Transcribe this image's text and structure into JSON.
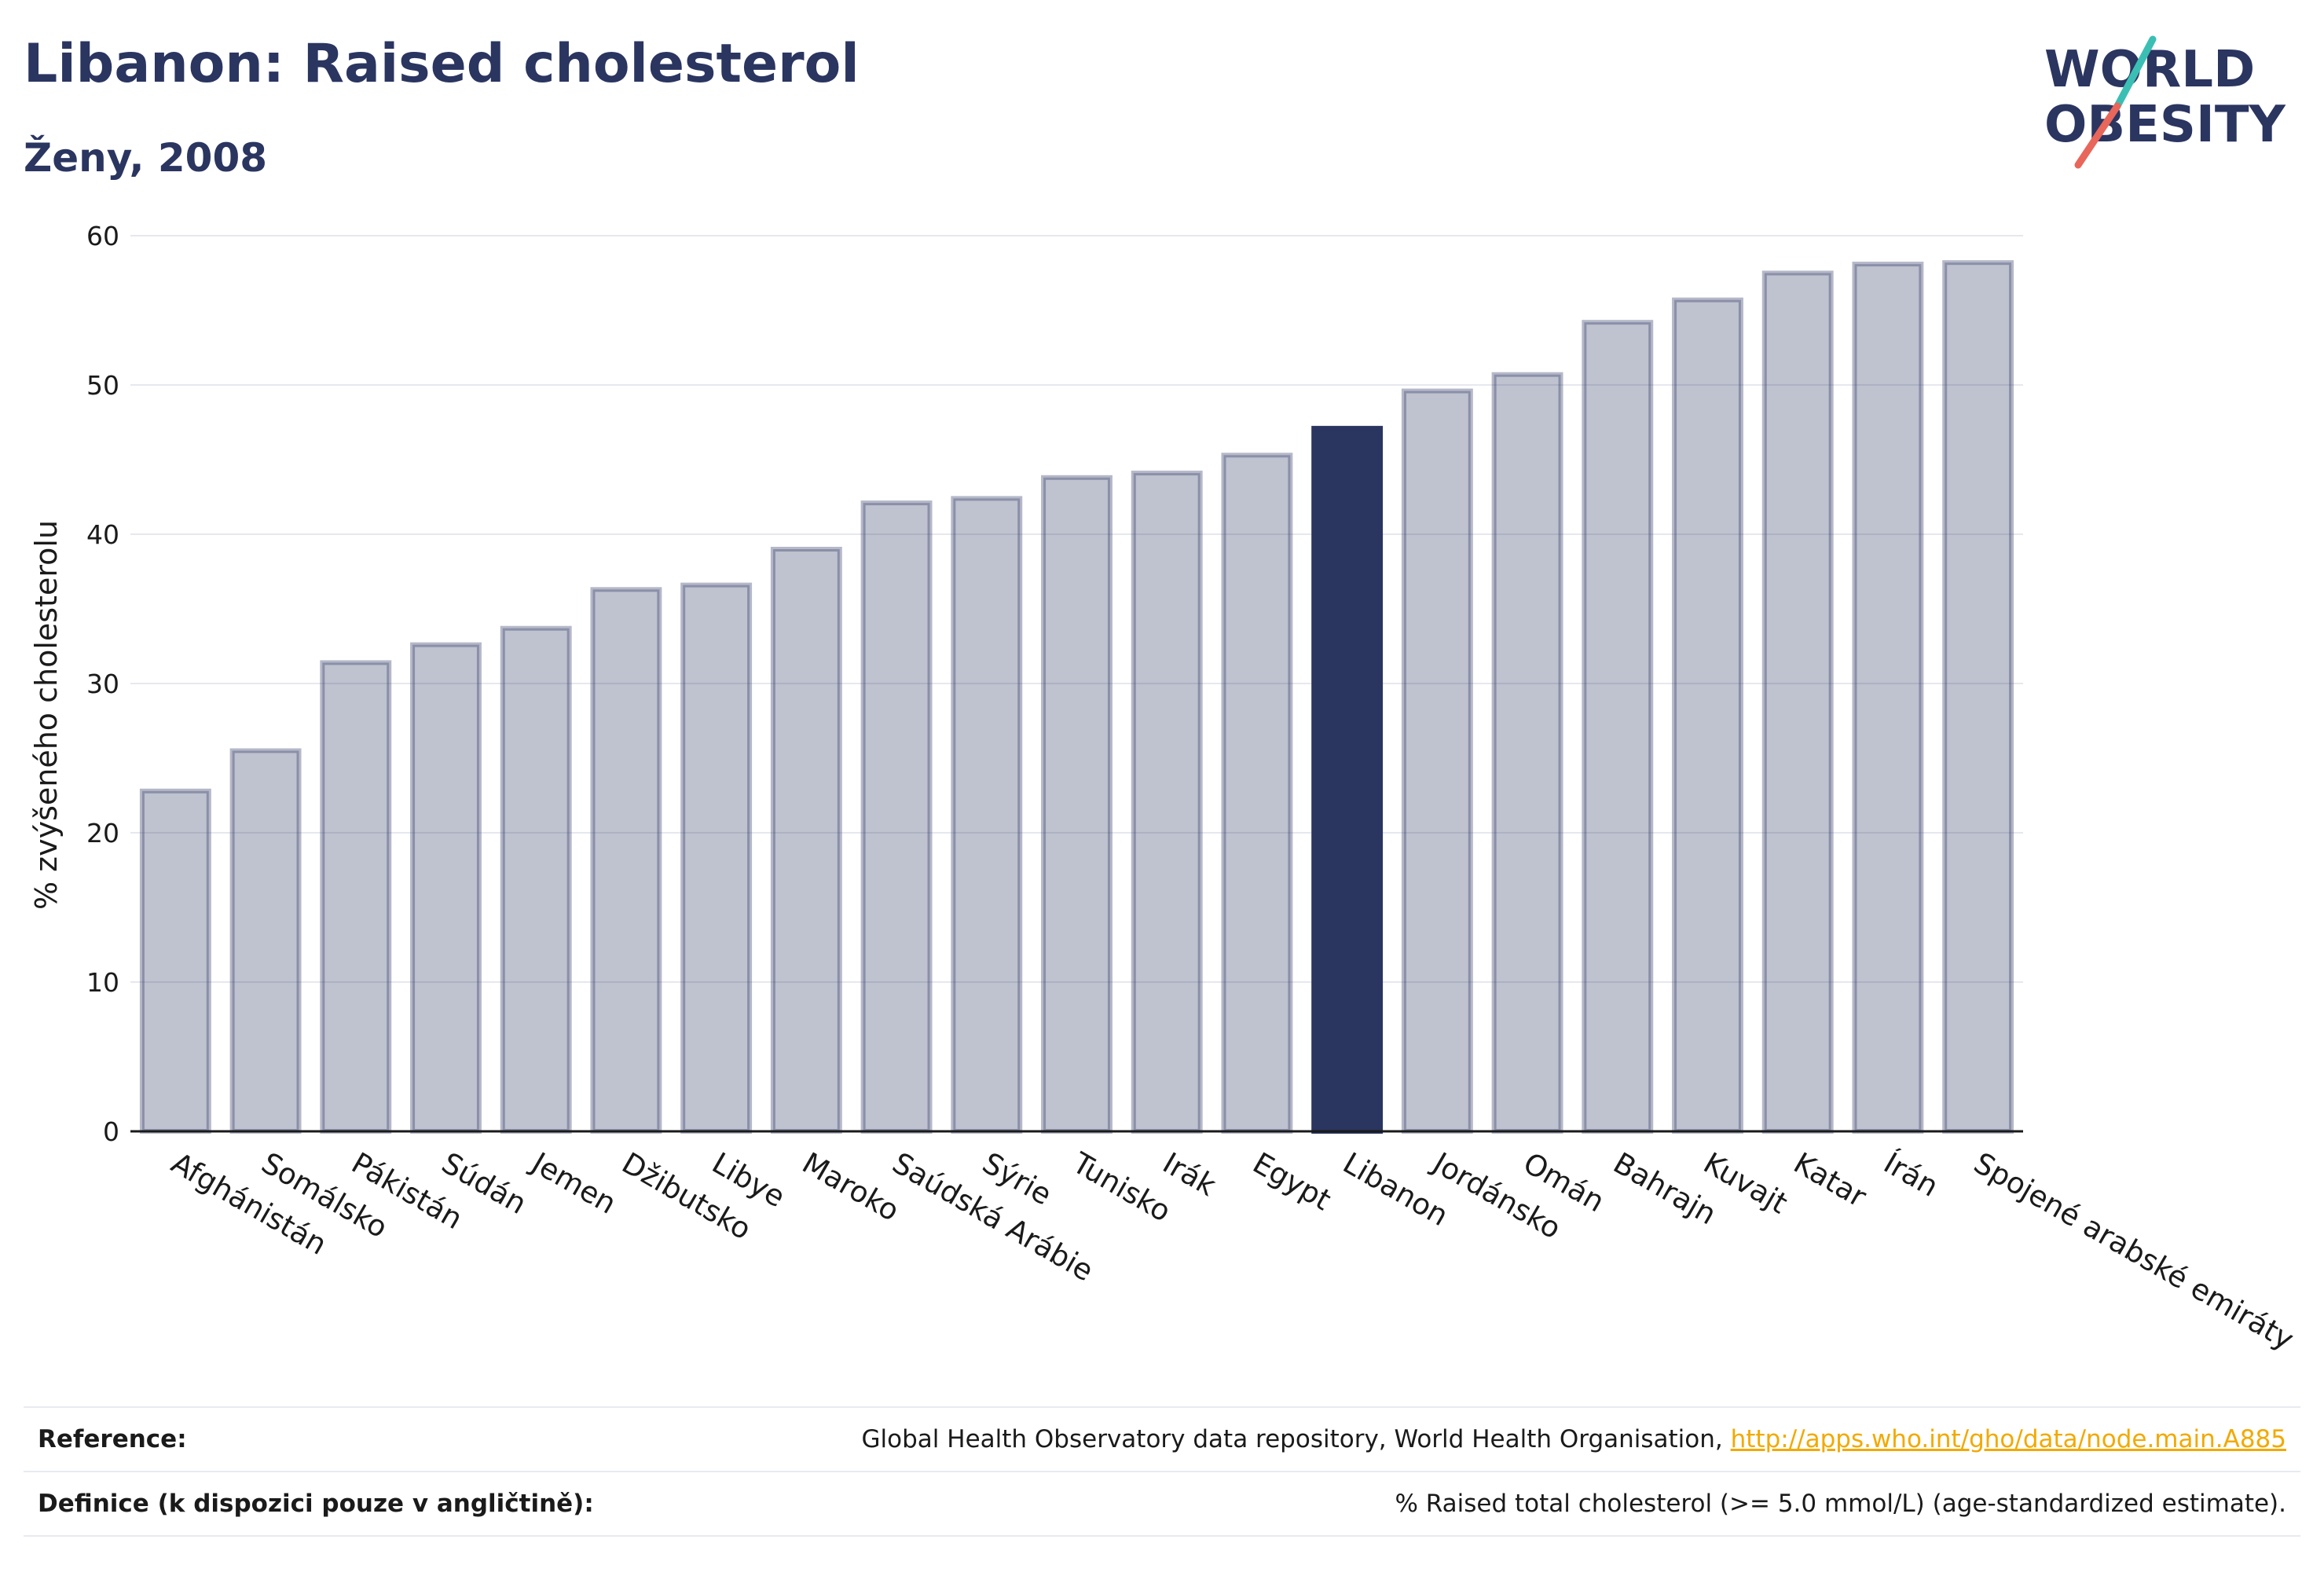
{
  "header": {
    "title": "Libanon: Raised cholesterol",
    "subtitle": "Ženy, 2008"
  },
  "logo": {
    "line1": "WORLD",
    "line2": "OBESITY"
  },
  "chart_data": {
    "type": "bar",
    "ylabel": "% zvýšeného cholesterolu",
    "ylim": [
      0,
      60
    ],
    "yticks": [
      0,
      10,
      20,
      30,
      40,
      50,
      60
    ],
    "grid": true,
    "highlight": "Libanon",
    "highlight_color": "#2a3560",
    "bar_color": "#bfc2d0",
    "categories": [
      "Afghánistán",
      "Somálsko",
      "Pákistán",
      "Súdán",
      "Jemen",
      "Džibutsko",
      "Libye",
      "Maroko",
      "Saúdská Arábie",
      "Sýrie",
      "Tunisko",
      "Irák",
      "Egypt",
      "Libanon",
      "Jordánsko",
      "Omán",
      "Bahrajn",
      "Kuvajt",
      "Katar",
      "Írán",
      "Spojené arabské emiráty"
    ],
    "values": [
      22.8,
      25.5,
      31.4,
      32.6,
      33.7,
      36.3,
      36.6,
      39.0,
      42.1,
      42.4,
      43.8,
      44.1,
      45.3,
      47.1,
      49.6,
      50.7,
      54.2,
      55.7,
      57.5,
      58.1,
      58.2
    ]
  },
  "footer": {
    "reference_label": "Reference:",
    "reference_text": "Global Health Observatory data repository, World Health Organisation, ",
    "reference_link": "http://apps.who.int/gho/data/node.main.A885",
    "definition_label": "Definice (k dispozici pouze v angličtině):",
    "definition_text": "% Raised total cholesterol (>= 5.0 mmol/L) (age-standardized estimate)."
  }
}
